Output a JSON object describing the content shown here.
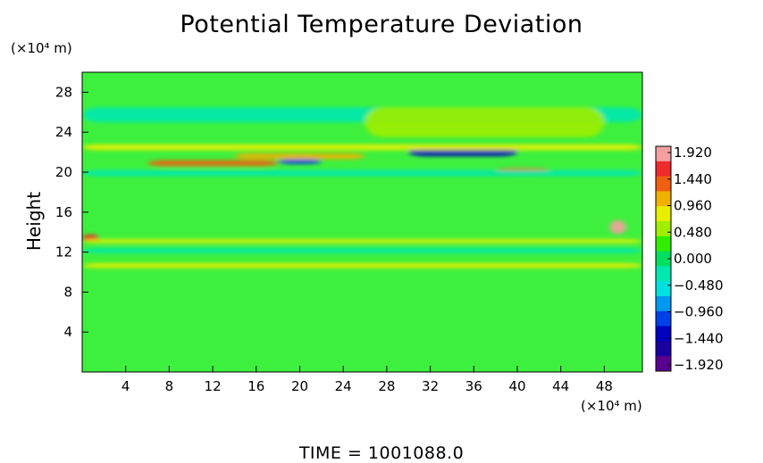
{
  "chart_data": {
    "type": "heatmap",
    "title": "Potential Temperature Deviation",
    "ylabel": "Height",
    "x_unit": "(×10⁴ m)",
    "y_unit": "(×10⁴ m)",
    "xlim": [
      0,
      51.5
    ],
    "ylim": [
      0,
      30
    ],
    "x_ticks": [
      "4",
      "8",
      "12",
      "16",
      "20",
      "24",
      "28",
      "32",
      "36",
      "40",
      "44",
      "48"
    ],
    "y_ticks": [
      "4",
      "8",
      "12",
      "16",
      "20",
      "24",
      "28"
    ],
    "colorbar": {
      "labels": [
        "1.920",
        "1.440",
        "0.960",
        "0.480",
        "0.000",
        "−0.480",
        "−0.960",
        "−1.440",
        "−1.920"
      ],
      "values": [
        1.92,
        1.44,
        0.96,
        0.48,
        0.0,
        -0.48,
        -0.96,
        -1.44,
        -1.92
      ],
      "colors": [
        "#f4a0a0",
        "#ee2a2a",
        "#f06010",
        "#f0b000",
        "#e8ee00",
        "#a0ee00",
        "#30ee00",
        "#00e060",
        "#00e8b0",
        "#00e0e0",
        "#0098f0",
        "#0040e8",
        "#0000c0",
        "#1800a0",
        "#5a0090"
      ]
    },
    "features": [
      {
        "x": [
          0,
          51.5
        ],
        "y": [
          25,
          26.5
        ],
        "value": -0.35
      },
      {
        "x": [
          26,
          48
        ],
        "y": [
          23.5,
          26.5
        ],
        "value": 0.55
      },
      {
        "x": [
          6,
          18
        ],
        "y": [
          20.6,
          21.2
        ],
        "value": 1.3
      },
      {
        "x": [
          14,
          26
        ],
        "y": [
          21.3,
          21.9
        ],
        "value": 1.0
      },
      {
        "x": [
          18,
          22
        ],
        "y": [
          20.8,
          21.3
        ],
        "value": -1.1
      },
      {
        "x": [
          30,
          40
        ],
        "y": [
          21.6,
          22.4
        ],
        "value": -1.4
      },
      {
        "x": [
          38,
          43
        ],
        "y": [
          19.9,
          20.4
        ],
        "value": 1.5
      },
      {
        "x": [
          0,
          51.5
        ],
        "y": [
          22.2,
          22.8
        ],
        "value": 0.7
      },
      {
        "x": [
          0,
          51.5
        ],
        "y": [
          19.6,
          20.2
        ],
        "value": -0.3
      },
      {
        "x": [
          48.5,
          50
        ],
        "y": [
          13.8,
          15.2
        ],
        "value": 1.9
      },
      {
        "x": [
          0,
          1.5
        ],
        "y": [
          13,
          13.8
        ],
        "value": 1.6
      },
      {
        "x": [
          0,
          51.5
        ],
        "y": [
          12.9,
          13.3
        ],
        "value": 0.7
      },
      {
        "x": [
          0,
          51.5
        ],
        "y": [
          11.9,
          12.4
        ],
        "value": -0.25
      },
      {
        "x": [
          0,
          51.5
        ],
        "y": [
          10.4,
          10.9
        ],
        "value": 0.9
      }
    ],
    "annotation": "TIME = 1001088.0"
  }
}
